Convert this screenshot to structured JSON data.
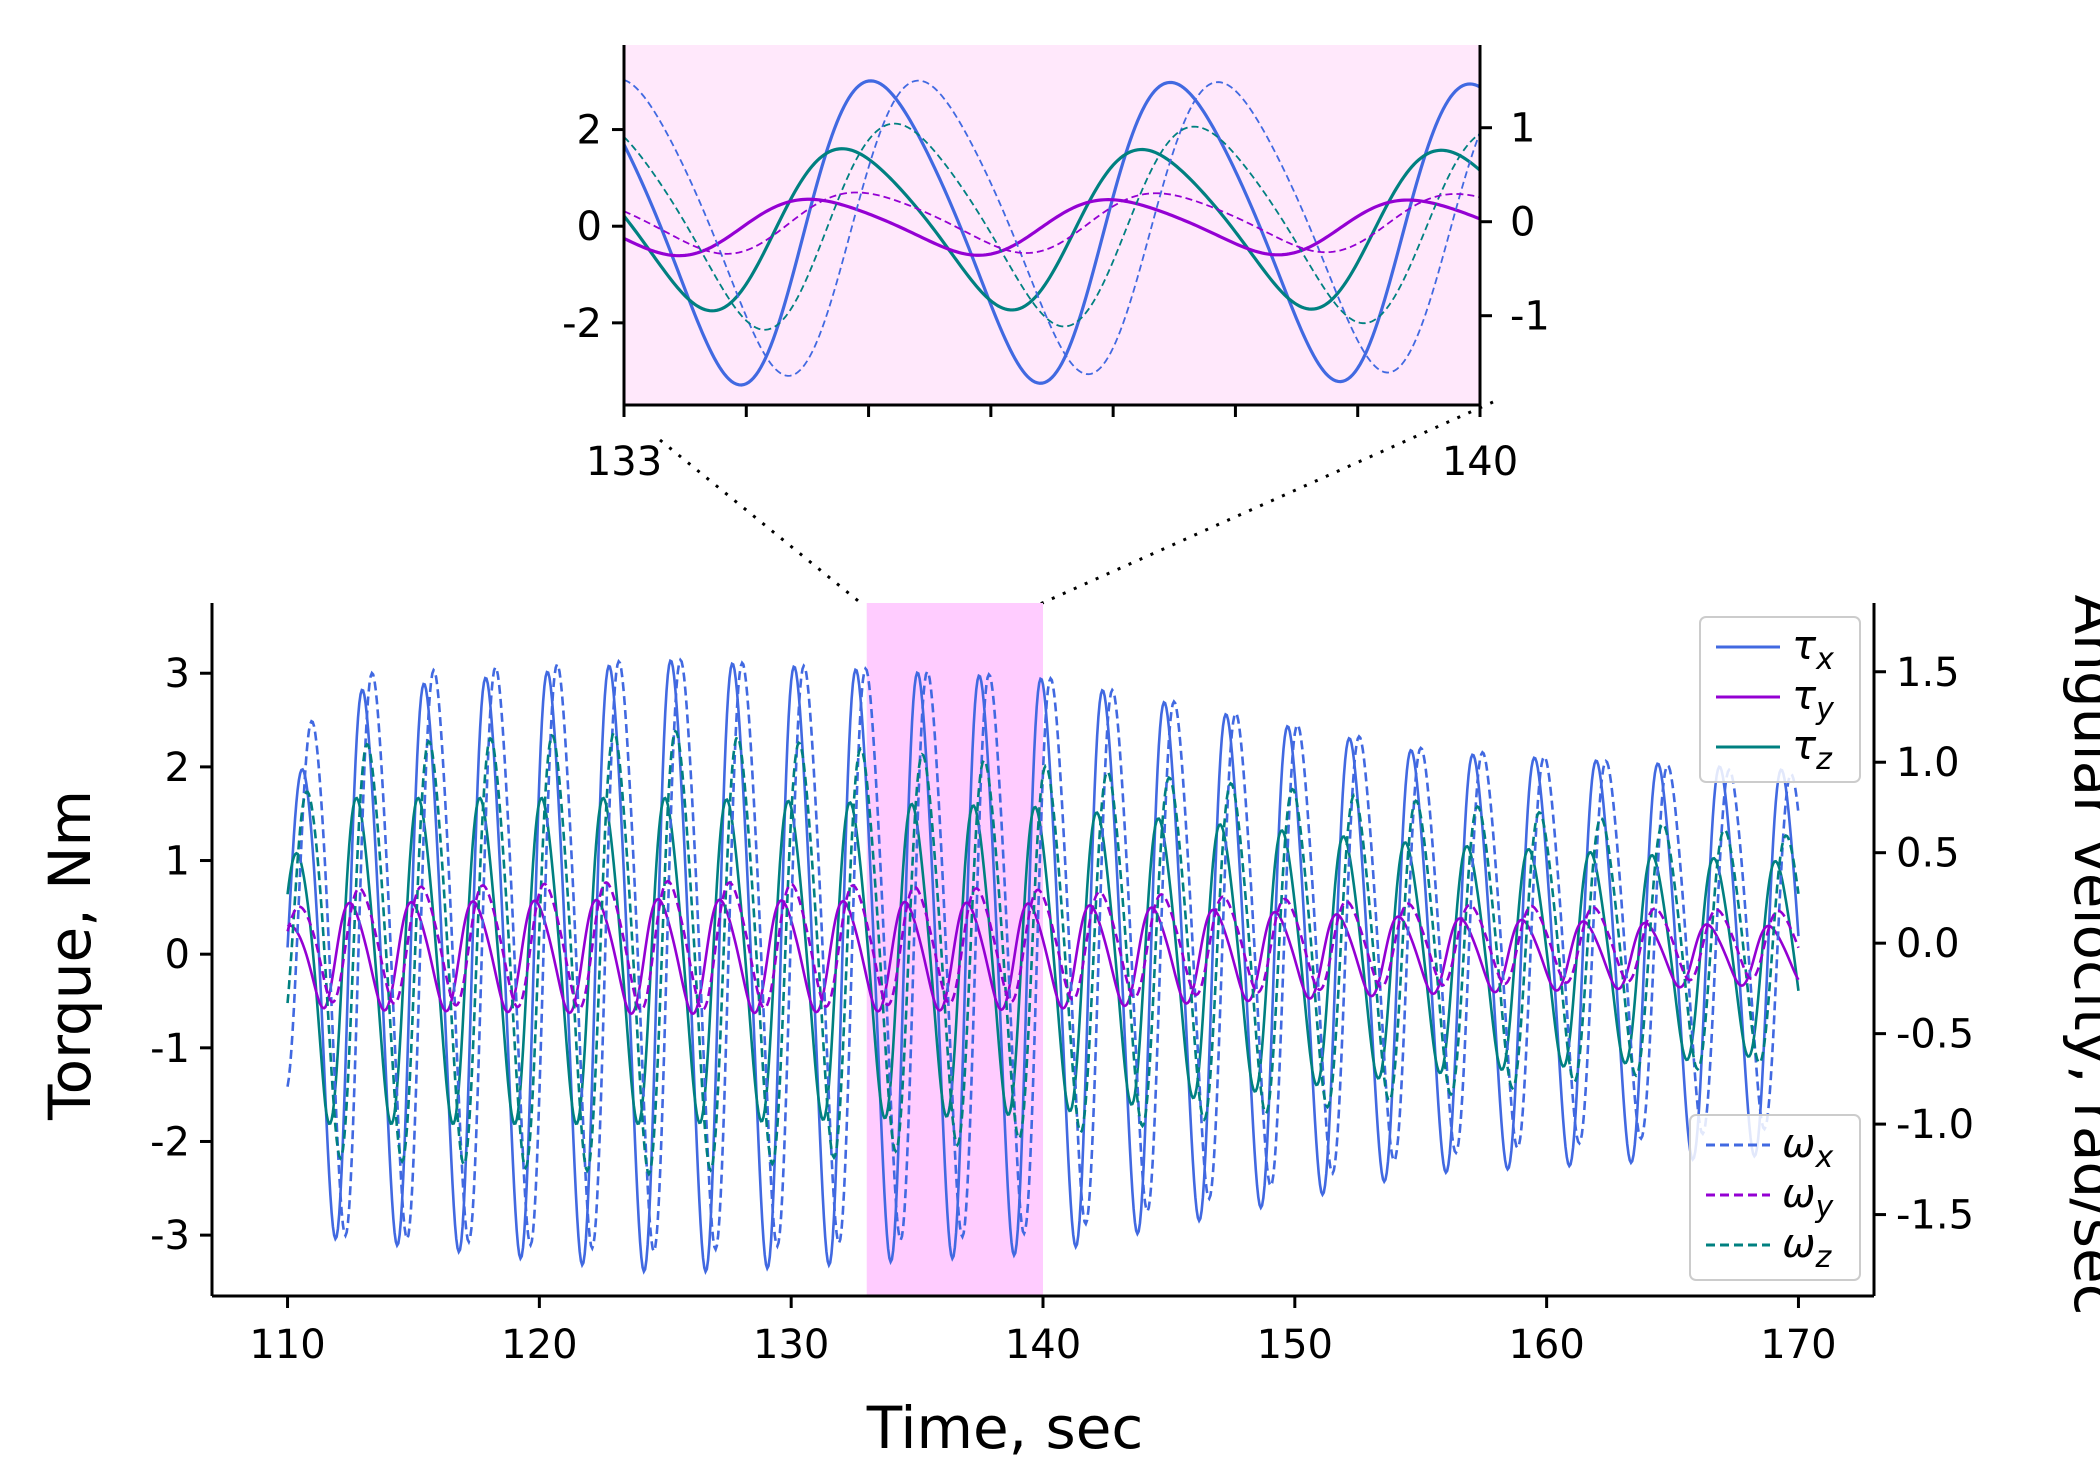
{
  "chart_data": [
    {
      "id": "main",
      "type": "line",
      "xlabel": "Time, sec",
      "ylabel_left": "Torque, Nm",
      "ylabel_right": "Angular velocity, rad/sec",
      "xlim": [
        107,
        173
      ],
      "ylim_left": [
        -3.65,
        3.75
      ],
      "ylim_right": [
        -1.95,
        1.88
      ],
      "x_ticks": [
        110,
        120,
        130,
        140,
        150,
        160,
        170
      ],
      "x_tick_labels": [
        "110",
        "120",
        "130",
        "140",
        "150",
        "160",
        "170"
      ],
      "y_left_ticks": [
        3,
        2,
        1,
        0,
        -1,
        -2,
        -3
      ],
      "y_left_tick_labels": [
        "3",
        "2",
        "1",
        "0",
        "-1",
        "-2",
        "-3"
      ],
      "y_right_ticks": [
        1.5,
        1.0,
        0.5,
        0.0,
        -0.5,
        -1.0,
        -1.5
      ],
      "y_right_tick_labels": [
        "1.5",
        "1.0",
        "0.5",
        "0.0",
        "-0.5",
        "-1.0",
        "-1.5"
      ],
      "highlight_range": [
        133,
        140
      ],
      "legend_torque": [
        {
          "label": "τ",
          "sub": "x",
          "color": "#4169e1"
        },
        {
          "label": "τ",
          "sub": "y",
          "color": "#9400d3"
        },
        {
          "label": "τ",
          "sub": "z",
          "color": "#008080"
        }
      ],
      "legend_velocity": [
        {
          "label": "ω",
          "sub": "x",
          "color": "#4169e1"
        },
        {
          "label": "ω",
          "sub": "y",
          "color": "#9400d3"
        },
        {
          "label": "ω",
          "sub": "z",
          "color": "#008080"
        }
      ],
      "legend_torque_position": "top-right",
      "legend_velocity_position": "bottom-right",
      "series_model": {
        "period_sec": 2.45,
        "x_range": [
          110,
          170
        ],
        "torque": {
          "tau_x": {
            "amplitude": [
              2.8,
              3.2,
              3.0,
              2.2,
              2.0
            ],
            "amplitude_at": [
              110,
              125,
              140,
              155,
              170
            ],
            "phase": 0.0,
            "line": "solid"
          },
          "tau_y": {
            "amplitude": [
              0.55,
              0.6,
              0.55,
              0.4,
              0.3
            ],
            "amplitude_at": [
              110,
              125,
              140,
              155,
              170
            ],
            "phase": 1.3,
            "line": "solid"
          },
          "tau_z": {
            "amplitude": [
              1.7,
              1.7,
              1.6,
              1.2,
              1.0
            ],
            "amplitude_at": [
              110,
              125,
              140,
              155,
              170
            ],
            "phase": 0.6,
            "line": "solid"
          }
        },
        "velocity": {
          "omega_x": {
            "amplitude": [
              1.5,
              1.6,
              1.5,
              1.1,
              0.95
            ],
            "amplitude_at": [
              110,
              125,
              140,
              155,
              170
            ],
            "phase": -1.0,
            "line": "dashed"
          },
          "omega_y": {
            "amplitude": [
              0.3,
              0.35,
              0.3,
              0.22,
              0.18
            ],
            "amplitude_at": [
              110,
              125,
              140,
              155,
              170
            ],
            "phase": 0.3,
            "line": "dashed"
          },
          "omega_z": {
            "amplitude": [
              1.1,
              1.2,
              1.0,
              0.8,
              0.6
            ],
            "amplitude_at": [
              110,
              125,
              140,
              155,
              170
            ],
            "phase": -0.5,
            "line": "dashed"
          }
        }
      },
      "colors": {
        "blue": "#4169e1",
        "purple": "#9400d3",
        "teal": "#008080",
        "highlight": "#ffccff"
      }
    },
    {
      "id": "inset",
      "type": "line",
      "xlim": [
        133,
        140
      ],
      "ylim_left": [
        -3.7,
        3.75
      ],
      "ylim_right": [
        -1.95,
        1.88
      ],
      "x_ticks": [
        133,
        134,
        135,
        136,
        137,
        138,
        139,
        140
      ],
      "x_tick_labels": [
        "133",
        "140"
      ],
      "y_left_ticks": [
        2,
        0,
        -2
      ],
      "y_left_tick_labels": [
        "2",
        "0",
        "-2"
      ],
      "y_right_ticks": [
        1,
        0,
        -1
      ],
      "y_right_tick_labels": [
        "1",
        "0",
        "-1"
      ],
      "background": "#ffe8fb"
    }
  ]
}
